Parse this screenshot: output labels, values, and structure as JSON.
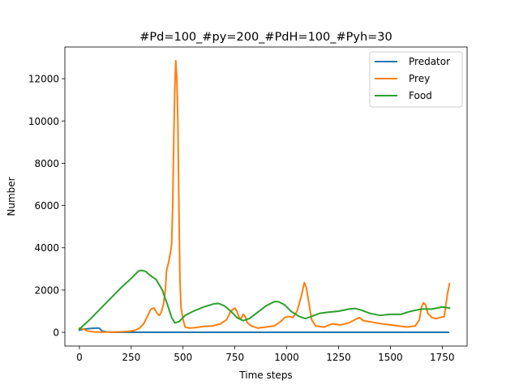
{
  "chart_data": {
    "type": "line",
    "title": "#Pd=100_#py=200_#PdH=100_#Pyh=30",
    "xlabel": "Time steps",
    "ylabel": "Number",
    "xlim": [
      -70,
      1870
    ],
    "ylim": [
      -650,
      13500
    ],
    "xticks": [
      0,
      250,
      500,
      750,
      1000,
      1250,
      1500,
      1750
    ],
    "yticks": [
      0,
      2000,
      4000,
      6000,
      8000,
      10000,
      12000
    ],
    "grid": false,
    "legend_position": "upper right",
    "series": [
      {
        "name": "Predator",
        "color": "#1f77b4",
        "points": [
          [
            0,
            100
          ],
          [
            20,
            150
          ],
          [
            50,
            180
          ],
          [
            80,
            200
          ],
          [
            95,
            200
          ],
          [
            100,
            150
          ],
          [
            110,
            60
          ],
          [
            130,
            20
          ],
          [
            160,
            5
          ],
          [
            200,
            0
          ],
          [
            400,
            0
          ],
          [
            800,
            0
          ],
          [
            1200,
            0
          ],
          [
            1600,
            0
          ],
          [
            1780,
            0
          ]
        ]
      },
      {
        "name": "Prey",
        "color": "#ff7f0e",
        "points": [
          [
            0,
            200
          ],
          [
            20,
            150
          ],
          [
            40,
            60
          ],
          [
            70,
            20
          ],
          [
            100,
            10
          ],
          [
            150,
            10
          ],
          [
            200,
            20
          ],
          [
            240,
            50
          ],
          [
            270,
            100
          ],
          [
            290,
            200
          ],
          [
            310,
            400
          ],
          [
            330,
            800
          ],
          [
            345,
            1100
          ],
          [
            360,
            1150
          ],
          [
            375,
            900
          ],
          [
            385,
            800
          ],
          [
            395,
            950
          ],
          [
            405,
            1300
          ],
          [
            415,
            2000
          ],
          [
            420,
            2900
          ],
          [
            430,
            3300
          ],
          [
            440,
            3800
          ],
          [
            445,
            4200
          ],
          [
            450,
            6000
          ],
          [
            455,
            9000
          ],
          [
            460,
            11500
          ],
          [
            465,
            12850
          ],
          [
            470,
            12000
          ],
          [
            475,
            10000
          ],
          [
            480,
            6000
          ],
          [
            485,
            2500
          ],
          [
            490,
            1200
          ],
          [
            500,
            600
          ],
          [
            510,
            250
          ],
          [
            530,
            200
          ],
          [
            560,
            220
          ],
          [
            600,
            280
          ],
          [
            640,
            300
          ],
          [
            680,
            400
          ],
          [
            710,
            600
          ],
          [
            730,
            1000
          ],
          [
            750,
            1150
          ],
          [
            760,
            1000
          ],
          [
            770,
            700
          ],
          [
            780,
            650
          ],
          [
            790,
            850
          ],
          [
            800,
            750
          ],
          [
            810,
            450
          ],
          [
            830,
            300
          ],
          [
            860,
            200
          ],
          [
            900,
            250
          ],
          [
            940,
            300
          ],
          [
            970,
            500
          ],
          [
            990,
            700
          ],
          [
            1010,
            750
          ],
          [
            1030,
            700
          ],
          [
            1050,
            1000
          ],
          [
            1070,
            1700
          ],
          [
            1085,
            2350
          ],
          [
            1095,
            2100
          ],
          [
            1105,
            1500
          ],
          [
            1120,
            600
          ],
          [
            1140,
            300
          ],
          [
            1180,
            250
          ],
          [
            1220,
            400
          ],
          [
            1260,
            350
          ],
          [
            1300,
            450
          ],
          [
            1330,
            600
          ],
          [
            1350,
            700
          ],
          [
            1370,
            550
          ],
          [
            1400,
            500
          ],
          [
            1430,
            450
          ],
          [
            1460,
            400
          ],
          [
            1500,
            350
          ],
          [
            1540,
            300
          ],
          [
            1580,
            250
          ],
          [
            1620,
            300
          ],
          [
            1640,
            600
          ],
          [
            1650,
            1200
          ],
          [
            1660,
            1400
          ],
          [
            1670,
            1300
          ],
          [
            1680,
            900
          ],
          [
            1700,
            700
          ],
          [
            1720,
            650
          ],
          [
            1740,
            700
          ],
          [
            1760,
            750
          ],
          [
            1775,
            1800
          ],
          [
            1785,
            2300
          ]
        ]
      },
      {
        "name": "Food",
        "color": "#2ca02c",
        "points": [
          [
            0,
            150
          ],
          [
            50,
            600
          ],
          [
            100,
            1100
          ],
          [
            150,
            1600
          ],
          [
            200,
            2100
          ],
          [
            250,
            2550
          ],
          [
            285,
            2900
          ],
          [
            300,
            2930
          ],
          [
            320,
            2880
          ],
          [
            340,
            2700
          ],
          [
            370,
            2500
          ],
          [
            400,
            2000
          ],
          [
            425,
            1300
          ],
          [
            445,
            700
          ],
          [
            460,
            450
          ],
          [
            480,
            500
          ],
          [
            510,
            800
          ],
          [
            550,
            1000
          ],
          [
            600,
            1200
          ],
          [
            650,
            1350
          ],
          [
            670,
            1370
          ],
          [
            700,
            1250
          ],
          [
            730,
            1000
          ],
          [
            760,
            700
          ],
          [
            790,
            550
          ],
          [
            820,
            650
          ],
          [
            860,
            950
          ],
          [
            900,
            1250
          ],
          [
            940,
            1450
          ],
          [
            960,
            1450
          ],
          [
            990,
            1300
          ],
          [
            1020,
            1000
          ],
          [
            1060,
            750
          ],
          [
            1090,
            650
          ],
          [
            1120,
            750
          ],
          [
            1160,
            900
          ],
          [
            1200,
            950
          ],
          [
            1250,
            1000
          ],
          [
            1300,
            1100
          ],
          [
            1330,
            1130
          ],
          [
            1360,
            1050
          ],
          [
            1400,
            900
          ],
          [
            1450,
            800
          ],
          [
            1500,
            850
          ],
          [
            1550,
            850
          ],
          [
            1600,
            1000
          ],
          [
            1650,
            1100
          ],
          [
            1700,
            1100
          ],
          [
            1750,
            1200
          ],
          [
            1785,
            1150
          ]
        ]
      }
    ]
  }
}
